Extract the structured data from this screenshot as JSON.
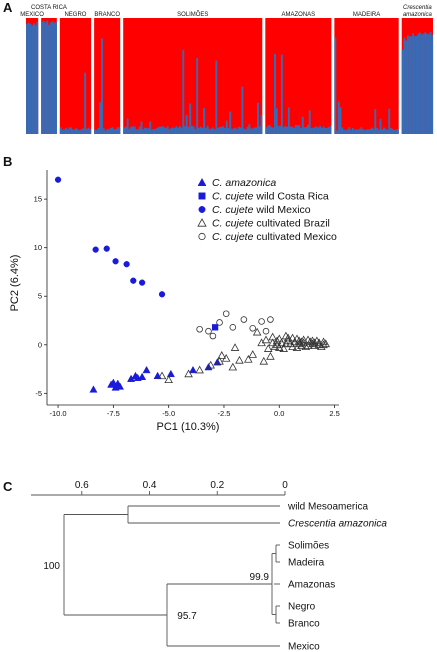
{
  "panels": {
    "a": {
      "letter": "A"
    },
    "b": {
      "letter": "B"
    },
    "c": {
      "letter": "C"
    }
  },
  "chart_data": [
    {
      "type": "bar",
      "title": "",
      "description": "STRUCTURE-style admixture barplot (K=2), proportions stacked to 1.0 per individual",
      "colors": {
        "cluster1": "#ff0000",
        "cluster2": "#3a6ab4"
      },
      "groups": [
        {
          "label": "MEXICO",
          "n": 7,
          "cluster2_base": 0.97,
          "italic": false
        },
        {
          "label": "COSTA RICA",
          "n": 9,
          "cluster2_base": 0.98,
          "italic": false
        },
        {
          "label": "NEGRO",
          "n": 18,
          "cluster2_base": 0.03,
          "italic": false
        },
        {
          "label": "BRANCO",
          "n": 15,
          "cluster2_base": 0.03,
          "italic": false
        },
        {
          "label": "SOLIMÕES",
          "n": 80,
          "cluster2_base": 0.04,
          "italic": false
        },
        {
          "label": "AMAZONAS",
          "n": 38,
          "cluster2_base": 0.05,
          "italic": false
        },
        {
          "label": "MADEIRA",
          "n": 37,
          "cluster2_base": 0.03,
          "italic": false
        },
        {
          "label_line1": "Crescentia",
          "label_line2": "amazonica",
          "n": 18,
          "cluster2_base": 0.88,
          "italic": true
        }
      ]
    },
    {
      "type": "scatter",
      "title": "",
      "xlabel": "PC1 (10.3%)",
      "ylabel": "PC2 (6.4%)",
      "xlim": [
        -10.5,
        2.7
      ],
      "ylim": [
        -6.2,
        18
      ],
      "xticks": [
        -10.0,
        -7.5,
        -5.0,
        -2.5,
        0.0,
        2.5
      ],
      "xtick_labels": [
        "-10.0",
        "-7.5",
        "-5.0",
        "-2.5",
        "0.0",
        "2.5"
      ],
      "yticks": [
        -5,
        0,
        5,
        10,
        15
      ],
      "ytick_labels": [
        "-5",
        "0",
        "5",
        "10",
        "15"
      ],
      "grid": false,
      "legend_position": "top-right",
      "series": [
        {
          "name_italic": "C. amazonica",
          "name_rest": "",
          "marker": "triangle-filled",
          "color": "#1a1adb",
          "points": [
            [
              -8.4,
              -4.6
            ],
            [
              -7.6,
              -4.1
            ],
            [
              -7.4,
              -4.4
            ],
            [
              -7.2,
              -4.3
            ],
            [
              -7.5,
              -3.9
            ],
            [
              -6.7,
              -3.5
            ],
            [
              -6.4,
              -3.4
            ],
            [
              -6.5,
              -3.2
            ],
            [
              -6.0,
              -2.6
            ],
            [
              -5.5,
              -3.2
            ],
            [
              -4.9,
              -3.0
            ],
            [
              -3.9,
              -2.6
            ],
            [
              -3.2,
              -2.3
            ],
            [
              -2.8,
              -1.8
            ],
            [
              -7.3,
              -4.0
            ],
            [
              -6.2,
              -3.3
            ]
          ]
        },
        {
          "name_italic": "C. cujete",
          "name_rest": " wild Costa Rica",
          "marker": "square-filled",
          "color": "#1a1adb",
          "points": [
            [
              -2.9,
              1.8
            ]
          ]
        },
        {
          "name_italic": "C. cujete",
          "name_rest": " wild Mexico",
          "marker": "circle-filled",
          "color": "#1a1adb",
          "points": [
            [
              -10.0,
              17.0
            ],
            [
              -8.3,
              9.8
            ],
            [
              -7.8,
              9.9
            ],
            [
              -7.4,
              8.6
            ],
            [
              -6.9,
              8.3
            ],
            [
              -6.6,
              6.6
            ],
            [
              -6.2,
              6.4
            ],
            [
              -5.3,
              5.2
            ]
          ]
        },
        {
          "name_italic": "C. cujete",
          "name_rest": " cultivated Brazil",
          "marker": "triangle-open",
          "color": "#333333",
          "points": [
            [
              -5.3,
              -3.2
            ],
            [
              -5.0,
              -3.6
            ],
            [
              -4.1,
              -3.0
            ],
            [
              -3.6,
              -2.6
            ],
            [
              -2.7,
              -1.7
            ],
            [
              -2.1,
              -2.3
            ],
            [
              -1.4,
              -1.5
            ],
            [
              -1.2,
              -1.0
            ],
            [
              -0.7,
              -1.7
            ],
            [
              -0.4,
              -1.2
            ],
            [
              -1.8,
              -1.6
            ],
            [
              -2.4,
              -1.4
            ],
            [
              -3.1,
              -2.1
            ],
            [
              -2.0,
              -0.3
            ],
            [
              -2.6,
              -1.1
            ],
            [
              -1.0,
              1.3
            ],
            [
              -0.6,
              0.5
            ],
            [
              -0.3,
              0.8
            ],
            [
              0.0,
              0.6
            ],
            [
              0.3,
              0.9
            ],
            [
              0.6,
              0.7
            ],
            [
              0.9,
              0.4
            ],
            [
              -0.2,
              -0.2
            ],
            [
              0.2,
              -0.4
            ],
            [
              0.5,
              0.1
            ],
            [
              -0.5,
              -0.4
            ],
            [
              0.8,
              -0.3
            ],
            [
              1.1,
              0.2
            ],
            [
              1.3,
              0.5
            ],
            [
              1.5,
              0.1
            ],
            [
              0.1,
              0.2
            ],
            [
              0.4,
              0.4
            ],
            [
              -0.8,
              0.2
            ],
            [
              -0.1,
              0.4
            ],
            [
              0.7,
              0.3
            ],
            [
              1.0,
              -0.1
            ],
            [
              1.2,
              -0.2
            ],
            [
              1.4,
              0.3
            ],
            [
              1.6,
              -0.1
            ],
            [
              1.8,
              0.2
            ],
            [
              2.0,
              0.0
            ],
            [
              1.7,
              0.4
            ],
            [
              1.9,
              -0.2
            ],
            [
              2.1,
              0.1
            ],
            [
              0.6,
              -0.2
            ],
            [
              0.3,
              0.1
            ],
            [
              -0.1,
              0.0
            ],
            [
              0.9,
              0.1
            ],
            [
              1.1,
              0.5
            ],
            [
              1.3,
              -0.1
            ],
            [
              1.5,
              0.4
            ],
            [
              0.0,
              -0.3
            ],
            [
              0.4,
              0.7
            ],
            [
              0.8,
              0.6
            ],
            [
              -0.3,
              0.2
            ],
            [
              1.0,
              0.3
            ],
            [
              1.6,
              0.2
            ],
            [
              1.8,
              0.0
            ],
            [
              2.0,
              0.3
            ]
          ]
        },
        {
          "name_italic": "C. cujete",
          "name_rest": " cultivated Mexico",
          "marker": "circle-open",
          "color": "#333333",
          "points": [
            [
              -3.6,
              1.6
            ],
            [
              -3.2,
              1.4
            ],
            [
              -2.7,
              2.3
            ],
            [
              -2.4,
              3.2
            ],
            [
              -1.6,
              2.6
            ],
            [
              -1.2,
              1.7
            ],
            [
              -0.8,
              2.4
            ],
            [
              -0.4,
              2.6
            ],
            [
              -0.6,
              1.4
            ],
            [
              -2.1,
              1.8
            ],
            [
              -3.0,
              0.9
            ]
          ]
        }
      ]
    },
    {
      "type": "table",
      "title": "",
      "description": "Dendrogram of genetic distance; horizontal scale axis",
      "axis_ticks": [
        "0.6",
        "0.4",
        "0.2",
        "0"
      ],
      "leaves": [
        {
          "label": "wild Mesoamerica",
          "italic": false
        },
        {
          "label": "Crescentia amazonica",
          "italic": true
        },
        {
          "label": "Solimões",
          "italic": false
        },
        {
          "label": "Madeira",
          "italic": false
        },
        {
          "label": "Amazonas",
          "italic": false
        },
        {
          "label": "Negro",
          "italic": false
        },
        {
          "label": "Branco",
          "italic": false
        },
        {
          "label": "Mexico",
          "italic": false
        }
      ],
      "bootstrap": [
        "100",
        "99.9",
        "95.7"
      ]
    }
  ]
}
